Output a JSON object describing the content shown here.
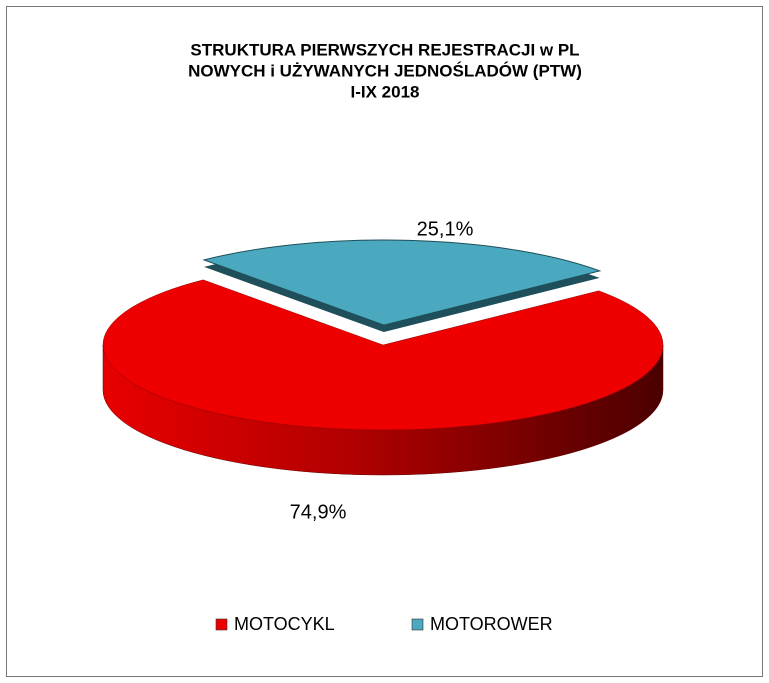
{
  "chart_data": {
    "type": "pie",
    "title": [
      "STRUKTURA PIERWSZYCH REJESTRACJI w PL",
      "NOWYCH i UŻYWANYCH JEDNOŚLADÓW (PTW)",
      "I-IX 2018"
    ],
    "categories": [
      "MOTOCYKL",
      "MOTOROWER"
    ],
    "values": [
      74.9,
      25.1
    ],
    "value_labels": [
      "74,9%",
      "25,1%"
    ],
    "colors": [
      "#ee0000",
      "#4aa8bf"
    ],
    "legend": "bottom"
  }
}
